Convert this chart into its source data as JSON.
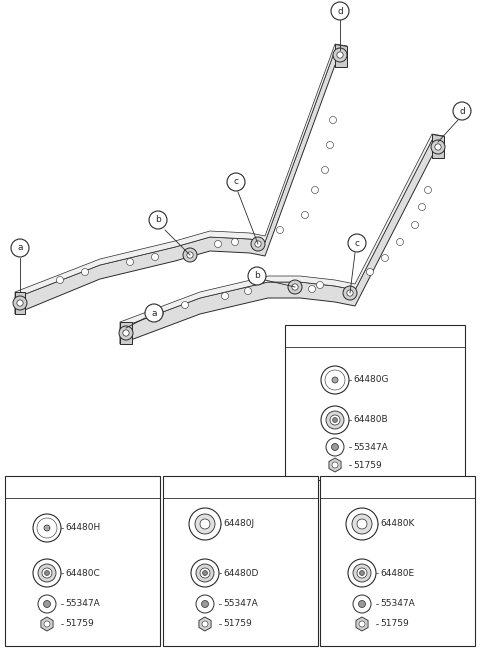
{
  "bg_color": "#ffffff",
  "line_color": "#2a2a2a",
  "fig_width": 4.8,
  "fig_height": 6.56,
  "dpi": 100,
  "parts_a": [
    "64480G",
    "64480B",
    "55347A",
    "51759"
  ],
  "parts_b": [
    "64480H",
    "64480C",
    "55347A",
    "51759"
  ],
  "parts_c": [
    "64480J",
    "64480D",
    "55347A",
    "51759"
  ],
  "parts_d": [
    "64480K",
    "64480E",
    "55347A",
    "51759"
  ]
}
